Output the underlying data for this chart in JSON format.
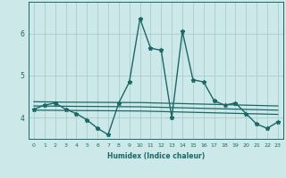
{
  "xlabel": "Humidex (Indice chaleur)",
  "background_color": "#cce8e8",
  "grid_color": "#aacccc",
  "line_color": "#1a6868",
  "xlim": [
    -0.5,
    23.5
  ],
  "ylim": [
    3.5,
    6.75
  ],
  "yticks": [
    4,
    5,
    6
  ],
  "xticks": [
    0,
    1,
    2,
    3,
    4,
    5,
    6,
    7,
    8,
    9,
    10,
    11,
    12,
    13,
    14,
    15,
    16,
    17,
    18,
    19,
    20,
    21,
    22,
    23
  ],
  "series": [
    {
      "x": [
        0,
        1,
        2,
        3,
        4,
        5,
        6,
        7,
        8,
        9,
        10,
        11,
        12,
        13,
        14,
        15,
        16,
        17,
        18,
        19,
        20,
        21,
        22,
        23
      ],
      "y": [
        4.2,
        4.3,
        4.35,
        4.2,
        4.1,
        3.95,
        3.75,
        3.6,
        4.35,
        4.85,
        6.35,
        5.65,
        5.6,
        4.0,
        6.05,
        4.9,
        4.85,
        4.4,
        4.3,
        4.35,
        4.1,
        3.85,
        3.75,
        3.9
      ],
      "marker": "*",
      "markersize": 3.5,
      "linewidth": 1.0
    },
    {
      "x": [
        0,
        3,
        10,
        23
      ],
      "y": [
        4.38,
        4.37,
        4.36,
        4.28
      ],
      "marker": null,
      "markersize": 0,
      "linewidth": 0.9
    },
    {
      "x": [
        0,
        4,
        10,
        23
      ],
      "y": [
        4.28,
        4.27,
        4.26,
        4.18
      ],
      "marker": null,
      "markersize": 0,
      "linewidth": 0.9
    },
    {
      "x": [
        0,
        5,
        10,
        23
      ],
      "y": [
        4.18,
        4.17,
        4.16,
        4.08
      ],
      "marker": null,
      "markersize": 0,
      "linewidth": 0.9
    }
  ]
}
